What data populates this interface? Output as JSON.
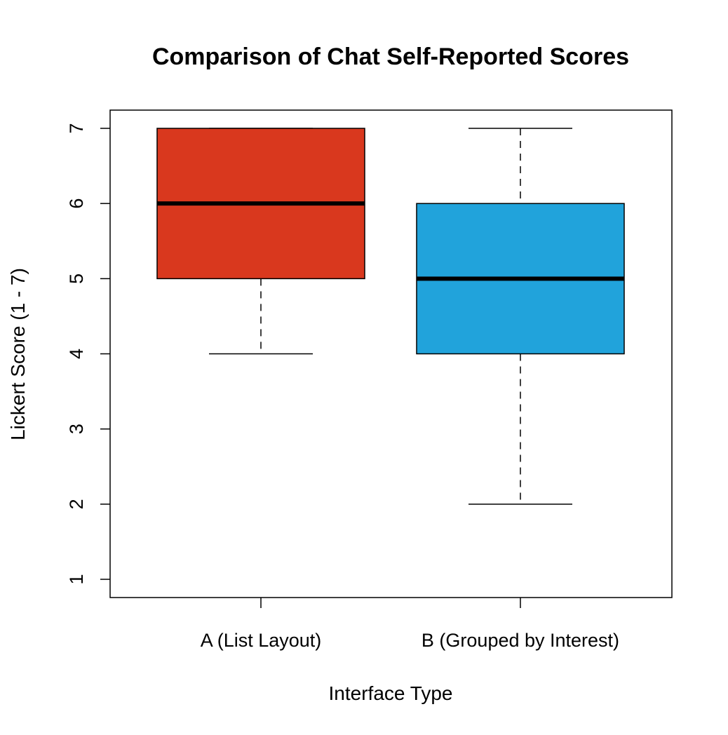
{
  "chart_data": {
    "type": "box",
    "title": "Comparison of Chat Self-Reported Scores",
    "xlabel": "Interface Type",
    "ylabel": "Lickert Score (1 - 7)",
    "ylim": [
      1,
      7
    ],
    "yticks": [
      "1",
      "2",
      "3",
      "4",
      "5",
      "6",
      "7"
    ],
    "grid": false,
    "categories": [
      "A (List Layout)",
      "B (Grouped by Interest)"
    ],
    "boxes": [
      {
        "category": "A (List Layout)",
        "whisker_low": 4,
        "q1": 5,
        "median": 6,
        "q3": 7,
        "whisker_high": 7,
        "color": "#D9381E"
      },
      {
        "category": "B (Grouped by Interest)",
        "whisker_low": 2,
        "q1": 4,
        "median": 5,
        "q3": 6,
        "whisker_high": 7,
        "color": "#21A3DB"
      }
    ]
  }
}
